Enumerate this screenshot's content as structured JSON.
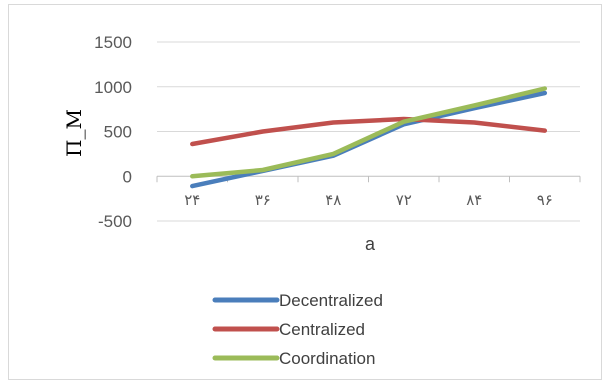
{
  "chart_data": {
    "type": "line",
    "categories": [
      "۲۴",
      "۳۶",
      "۴۸",
      "۷۲",
      "۸۴",
      "۹۶"
    ],
    "xlabel": "a",
    "ylabel": "Π_M",
    "ylim": [
      -500,
      1500
    ],
    "yticks": [
      -500,
      0,
      500,
      1000,
      1500
    ],
    "grid": true,
    "legend": "bottom",
    "series": [
      {
        "name": "Decentralized",
        "color": "#4a7ebb",
        "values": [
          -110,
          60,
          230,
          580,
          760,
          930
        ]
      },
      {
        "name": "Centralized",
        "color": "#c0504d",
        "values": [
          360,
          500,
          600,
          640,
          600,
          510
        ]
      },
      {
        "name": "Coordination",
        "color": "#9bbb59",
        "values": [
          0,
          70,
          250,
          610,
          790,
          980
        ]
      }
    ]
  }
}
